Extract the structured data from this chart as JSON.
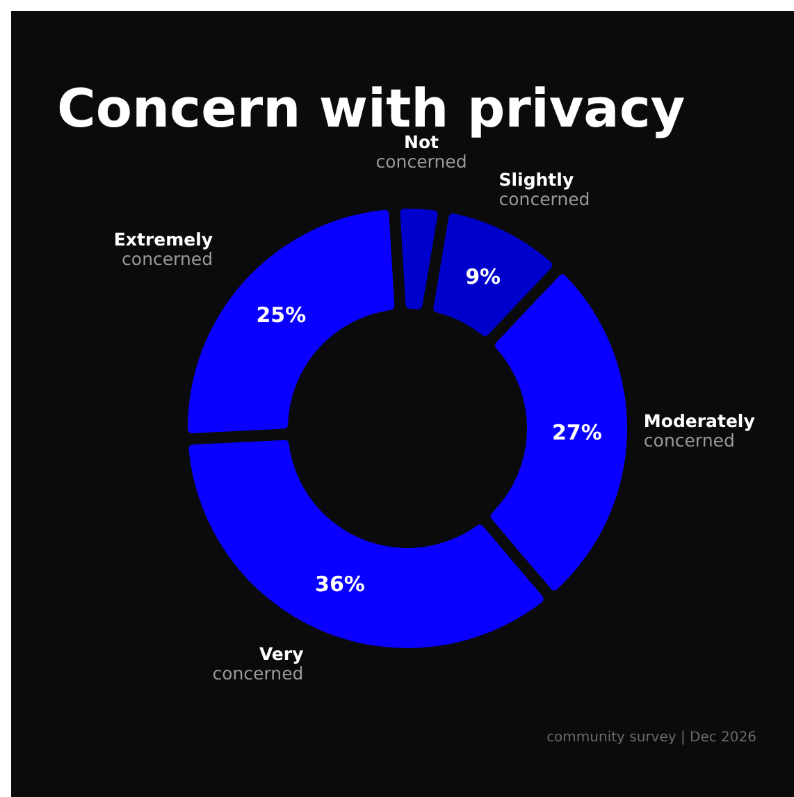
{
  "chart_data": {
    "type": "donut",
    "title": "Concern with privacy",
    "categories": [
      "Not concerned",
      "Slightly concerned",
      "Moderately concerned",
      "Very concerned",
      "Extremely concerned"
    ],
    "values": [
      3,
      9,
      27,
      36,
      25
    ],
    "colors": [
      "#0000cc",
      "#0000cc",
      "#0a00ff",
      "#0a00ff",
      "#0a00ff"
    ],
    "value_labels": [
      null,
      "9%",
      "27%",
      "36%",
      "25%"
    ],
    "annotations": [
      "community survey | Dec 2026"
    ]
  }
}
